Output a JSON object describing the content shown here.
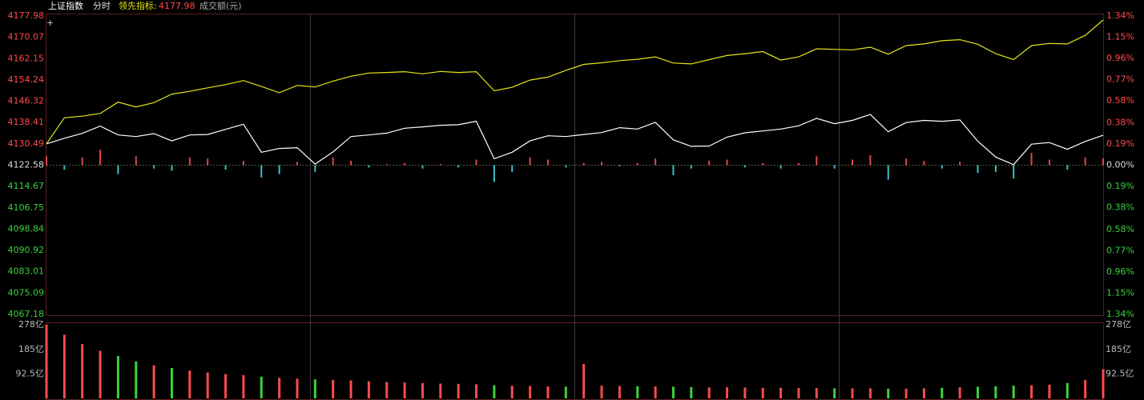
{
  "header": {
    "name": "上证指数",
    "mode": "分时",
    "indicator_label": "领先指标:",
    "indicator_value": "4177.98",
    "volume_label": "成交额(元)"
  },
  "chart_data": [
    {
      "type": "line",
      "categories": [
        null,
        null,
        null,
        null,
        null,
        null,
        null,
        null,
        null,
        null,
        null,
        null,
        null,
        null,
        null,
        null,
        null,
        null,
        null,
        null,
        null,
        null,
        null,
        null,
        null,
        null,
        null,
        null,
        null,
        null,
        null,
        null,
        null,
        null,
        null,
        null,
        null,
        null,
        null,
        null,
        null,
        null,
        null,
        null,
        null,
        null,
        null,
        null,
        null,
        null,
        null,
        null,
        null,
        null,
        null,
        null,
        null,
        null,
        null,
        null
      ],
      "ylim": [
        4067.18,
        4177.98
      ],
      "yticks": [
        4177.98,
        4170.07,
        4162.15,
        4154.24,
        4146.32,
        4138.41,
        4130.49,
        4122.58,
        4114.67,
        4106.75,
        4098.84,
        4090.92,
        4083.01,
        4075.09,
        4067.18
      ],
      "y2lim": [
        -1.34,
        1.34
      ],
      "y2ticks": [
        {
          "value": 1.34,
          "label": "1.34%"
        },
        {
          "value": 1.15,
          "label": "1.15%"
        },
        {
          "value": 0.96,
          "label": "0.96%"
        },
        {
          "value": 0.77,
          "label": "0.77%"
        },
        {
          "value": 0.58,
          "label": "0.58%"
        },
        {
          "value": 0.38,
          "label": "0.38%"
        },
        {
          "value": 0.19,
          "label": "0.19%"
        },
        {
          "value": 0.0,
          "label": "0.00%"
        },
        {
          "value": -0.19,
          "label": "0.19%"
        },
        {
          "value": -0.38,
          "label": "0.38%"
        },
        {
          "value": -0.58,
          "label": "0.58%"
        },
        {
          "value": -0.77,
          "label": "0.77%"
        },
        {
          "value": -0.96,
          "label": "0.96%"
        },
        {
          "value": -1.15,
          "label": "1.15%"
        },
        {
          "value": -1.34,
          "label": "1.34%"
        }
      ],
      "up_color": "#ff4b4b",
      "down_color": "#3bd23b",
      "flat_color": "#dddddd",
      "series": [
        {
          "color": "#ffffff",
          "values": [
            4130.5,
            4132.6,
            4134.4,
            4137.1,
            4133.8,
            4133.2,
            4134.3,
            4131.6,
            4133.8,
            4134.0,
            4135.9,
            4137.8,
            4127.4,
            4128.8,
            4129.1,
            4123.0,
            4127.5,
            4133.2,
            4133.8,
            4134.5,
            4136.3,
            4136.8,
            4137.4,
            4137.6,
            4138.9,
            4125.0,
            4127.4,
            4131.6,
            4133.5,
            4133.2,
            4134.0,
            4134.7,
            4136.5,
            4136.0,
            4138.5,
            4132.0,
            4129.6,
            4129.7,
            4133.0,
            4134.6,
            4135.3,
            4136.0,
            4137.2,
            4140.0,
            4138.0,
            4139.2,
            4141.4,
            4135.0,
            4138.4,
            4139.2,
            4138.9,
            4139.4,
            4131.5,
            4125.6,
            4122.8,
            4130.4,
            4131.0,
            4128.5,
            4131.4,
            4133.7
          ]
        },
        {
          "color": "#e6e619",
          "values": [
            4130.5,
            4140.2,
            4140.8,
            4141.8,
            4146.0,
            4144.2,
            4145.8,
            4149.0,
            4150.0,
            4151.3,
            4152.5,
            4154.0,
            4151.8,
            4149.5,
            4152.2,
            4151.6,
            4153.8,
            4155.6,
            4156.8,
            4157.0,
            4157.3,
            4156.5,
            4157.4,
            4157.0,
            4157.3,
            4150.2,
            4151.5,
            4154.2,
            4155.3,
            4157.8,
            4160.0,
            4160.6,
            4161.4,
            4161.9,
            4162.8,
            4160.5,
            4160.2,
            4161.8,
            4163.3,
            4164.0,
            4164.8,
            4161.6,
            4162.8,
            4165.8,
            4165.6,
            4165.4,
            4166.4,
            4163.8,
            4167.0,
            4167.6,
            4168.8,
            4169.2,
            4167.5,
            4164.0,
            4161.8,
            4167.0,
            4167.8,
            4167.6,
            4170.8,
            4176.5
          ]
        },
        {
          "type": "bar",
          "axis": "y2",
          "up_color": "#e0484b",
          "down_color": "#35c3cc",
          "values": [
            0.08,
            -0.04,
            0.07,
            0.14,
            -0.08,
            0.08,
            -0.03,
            -0.05,
            0.07,
            0.06,
            -0.04,
            0.04,
            -0.11,
            -0.08,
            0.03,
            -0.06,
            0.07,
            0.04,
            -0.02,
            0.01,
            0.02,
            -0.03,
            0.01,
            -0.02,
            0.05,
            -0.15,
            -0.06,
            0.07,
            0.05,
            -0.02,
            0.02,
            0.03,
            -0.01,
            0.02,
            0.06,
            -0.09,
            -0.03,
            0.04,
            0.05,
            -0.02,
            0.02,
            -0.03,
            0.02,
            0.08,
            -0.03,
            0.05,
            0.09,
            -0.13,
            0.06,
            0.04,
            -0.03,
            0.03,
            -0.07,
            -0.06,
            -0.12,
            0.11,
            0.05,
            -0.04,
            0.07,
            0.06
          ]
        }
      ]
    },
    {
      "type": "bar",
      "categories": [
        null,
        null,
        null,
        null,
        null,
        null,
        null,
        null,
        null,
        null,
        null,
        null,
        null,
        null,
        null,
        null,
        null,
        null,
        null,
        null,
        null,
        null,
        null,
        null,
        null,
        null,
        null,
        null,
        null,
        null,
        null,
        null,
        null,
        null,
        null,
        null,
        null,
        null,
        null,
        null,
        null,
        null,
        null,
        null,
        null,
        null,
        null,
        null,
        null,
        null,
        null,
        null,
        null,
        null,
        null,
        null,
        null,
        null,
        null,
        null
      ],
      "ylim": [
        0,
        278
      ],
      "yticks": [
        {
          "value": 278,
          "label": "278亿"
        },
        {
          "value": 185,
          "label": "185亿"
        },
        {
          "value": 92.5,
          "label": "92.5亿"
        }
      ],
      "up_color": "#ff4b4b",
      "down_color": "#3bd23b",
      "values": [
        278,
        240,
        205,
        180,
        160,
        140,
        125,
        115,
        105,
        98,
        92,
        88,
        82,
        78,
        75,
        72,
        70,
        68,
        65,
        62,
        60,
        58,
        56,
        55,
        53,
        50,
        48,
        47,
        45,
        44,
        130,
        48,
        47,
        46,
        45,
        44,
        43,
        42,
        42,
        41,
        40,
        40,
        39,
        39,
        38,
        38,
        38,
        37,
        37,
        38,
        40,
        42,
        44,
        46,
        48,
        50,
        52,
        58,
        70,
        110
      ]
    }
  ]
}
